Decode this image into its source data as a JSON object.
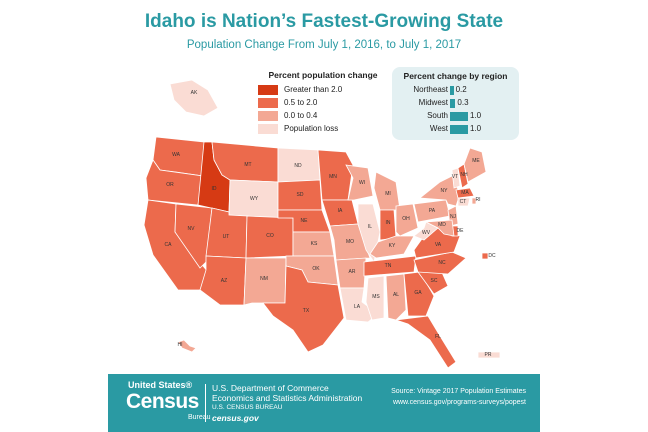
{
  "title": "Idaho is Nation’s Fastest-Growing State",
  "subtitle": "Population Change From July 1, 2016, to July 1, 2017",
  "legend": {
    "title": "Percent population change",
    "items": [
      {
        "label": "Greater than 2.0",
        "color": "#d63a14"
      },
      {
        "label": "0.5 to 2.0",
        "color": "#ec6a4c"
      },
      {
        "label": "0.0 to 0.4",
        "color": "#f3a894"
      },
      {
        "label": "Population loss",
        "color": "#fadcd4"
      }
    ]
  },
  "regions": {
    "title": "Percent change by region",
    "color": "#2a9aa3",
    "items": [
      {
        "name": "Northeast",
        "value": 0.2,
        "label": "0.2"
      },
      {
        "name": "Midwest",
        "value": 0.3,
        "label": "0.3"
      },
      {
        "name": "South",
        "value": 1.0,
        "label": "1.0"
      },
      {
        "name": "West",
        "value": 1.0,
        "label": "1.0"
      }
    ]
  },
  "states": [
    {
      "abbr": "WA",
      "category": "0.5 to 2.0"
    },
    {
      "abbr": "OR",
      "category": "0.5 to 2.0"
    },
    {
      "abbr": "CA",
      "category": "0.5 to 2.0"
    },
    {
      "abbr": "NV",
      "category": "0.5 to 2.0"
    },
    {
      "abbr": "ID",
      "category": "Greater than 2.0"
    },
    {
      "abbr": "MT",
      "category": "0.5 to 2.0"
    },
    {
      "abbr": "WY",
      "category": "Population loss"
    },
    {
      "abbr": "UT",
      "category": "0.5 to 2.0"
    },
    {
      "abbr": "AZ",
      "category": "0.5 to 2.0"
    },
    {
      "abbr": "CO",
      "category": "0.5 to 2.0"
    },
    {
      "abbr": "NM",
      "category": "0.0 to 0.4"
    },
    {
      "abbr": "ND",
      "category": "Population loss"
    },
    {
      "abbr": "SD",
      "category": "0.5 to 2.0"
    },
    {
      "abbr": "NE",
      "category": "0.5 to 2.0"
    },
    {
      "abbr": "KS",
      "category": "0.0 to 0.4"
    },
    {
      "abbr": "OK",
      "category": "0.0 to 0.4"
    },
    {
      "abbr": "TX",
      "category": "0.5 to 2.0"
    },
    {
      "abbr": "MN",
      "category": "0.5 to 2.0"
    },
    {
      "abbr": "IA",
      "category": "0.5 to 2.0"
    },
    {
      "abbr": "MO",
      "category": "0.0 to 0.4"
    },
    {
      "abbr": "AR",
      "category": "0.0 to 0.4"
    },
    {
      "abbr": "LA",
      "category": "Population loss"
    },
    {
      "abbr": "WI",
      "category": "0.0 to 0.4"
    },
    {
      "abbr": "IL",
      "category": "Population loss"
    },
    {
      "abbr": "MI",
      "category": "0.0 to 0.4"
    },
    {
      "abbr": "IN",
      "category": "0.5 to 2.0"
    },
    {
      "abbr": "OH",
      "category": "0.0 to 0.4"
    },
    {
      "abbr": "KY",
      "category": "0.0 to 0.4"
    },
    {
      "abbr": "TN",
      "category": "0.5 to 2.0"
    },
    {
      "abbr": "MS",
      "category": "Population loss"
    },
    {
      "abbr": "AL",
      "category": "0.0 to 0.4"
    },
    {
      "abbr": "GA",
      "category": "0.5 to 2.0"
    },
    {
      "abbr": "FL",
      "category": "0.5 to 2.0"
    },
    {
      "abbr": "SC",
      "category": "0.5 to 2.0"
    },
    {
      "abbr": "NC",
      "category": "0.5 to 2.0"
    },
    {
      "abbr": "VA",
      "category": "0.5 to 2.0"
    },
    {
      "abbr": "WV",
      "category": "Population loss"
    },
    {
      "abbr": "PA",
      "category": "0.0 to 0.4"
    },
    {
      "abbr": "NY",
      "category": "0.0 to 0.4"
    },
    {
      "abbr": "VT",
      "category": "Population loss"
    },
    {
      "abbr": "NH",
      "category": "0.5 to 2.0"
    },
    {
      "abbr": "ME",
      "category": "0.0 to 0.4"
    },
    {
      "abbr": "MA",
      "category": "0.5 to 2.0"
    },
    {
      "abbr": "RI",
      "category": "0.0 to 0.4"
    },
    {
      "abbr": "CT",
      "category": "Population loss"
    },
    {
      "abbr": "NJ",
      "category": "0.0 to 0.4"
    },
    {
      "abbr": "DE",
      "category": "0.5 to 2.0"
    },
    {
      "abbr": "MD",
      "category": "0.0 to 0.4"
    },
    {
      "abbr": "DC",
      "category": "0.5 to 2.0"
    },
    {
      "abbr": "AK",
      "category": "Population loss"
    },
    {
      "abbr": "HI",
      "category": "0.0 to 0.4"
    },
    {
      "abbr": "PR",
      "category": "Population loss"
    }
  ],
  "footer": {
    "logo_top": "United States®",
    "logo_main": "Census",
    "logo_bureau": "Bureau",
    "dept_line1": "U.S. Department of Commerce",
    "dept_line2": "Economics and Statistics Administration",
    "dept_line3": "U.S. CENSUS BUREAU",
    "dept_site": "census.gov",
    "source_line1": "Source: Vintage 2017 Population Estimates",
    "source_line2": "www.census.gov/programs-surveys/popest"
  }
}
